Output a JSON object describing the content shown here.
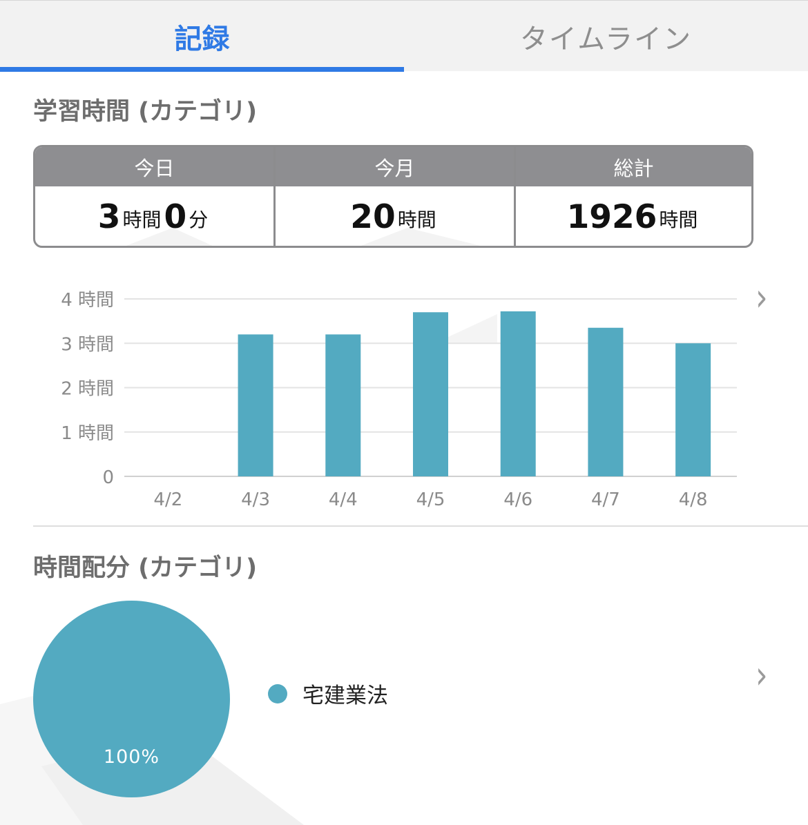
{
  "tabs": [
    {
      "label": "記録",
      "active": true
    },
    {
      "label": "タイムライン",
      "active": false
    }
  ],
  "colors": {
    "accent": "#2f7ae5",
    "bar": "#53aac1",
    "header_gray": "#8e8e91"
  },
  "study_section": {
    "title": "学習時間 (カテゴリ)"
  },
  "stats": [
    {
      "header": "今日",
      "parts": [
        {
          "num": "3",
          "unit": "時間"
        },
        {
          "num": "0",
          "unit": "分"
        }
      ]
    },
    {
      "header": "今月",
      "parts": [
        {
          "num": "20",
          "unit": "時間"
        }
      ]
    },
    {
      "header": "総計",
      "parts": [
        {
          "num": "1926",
          "unit": "時間"
        }
      ]
    }
  ],
  "chart_data": {
    "type": "bar",
    "categories": [
      "4/2",
      "4/3",
      "4/4",
      "4/5",
      "4/6",
      "4/7",
      "4/8"
    ],
    "values": [
      0,
      3.2,
      3.2,
      3.7,
      3.72,
      3.35,
      3.0
    ],
    "y_ticks": [
      {
        "value": 4,
        "label": "4 時間"
      },
      {
        "value": 3,
        "label": "3 時間"
      },
      {
        "value": 2,
        "label": "2 時間"
      },
      {
        "value": 1,
        "label": "1 時間"
      },
      {
        "value": 0,
        "label": "0"
      }
    ],
    "ylim": [
      0,
      4
    ],
    "grid": true,
    "color": "#53aac1"
  },
  "distribution_section": {
    "title": "時間配分 (カテゴリ)"
  },
  "pie_chart": {
    "type": "pie",
    "slices": [
      {
        "label": "宅建業法",
        "value": 100,
        "percent_label": "100%",
        "color": "#53aac1"
      }
    ]
  },
  "icons": {
    "chevron": "chevron-right-icon"
  }
}
